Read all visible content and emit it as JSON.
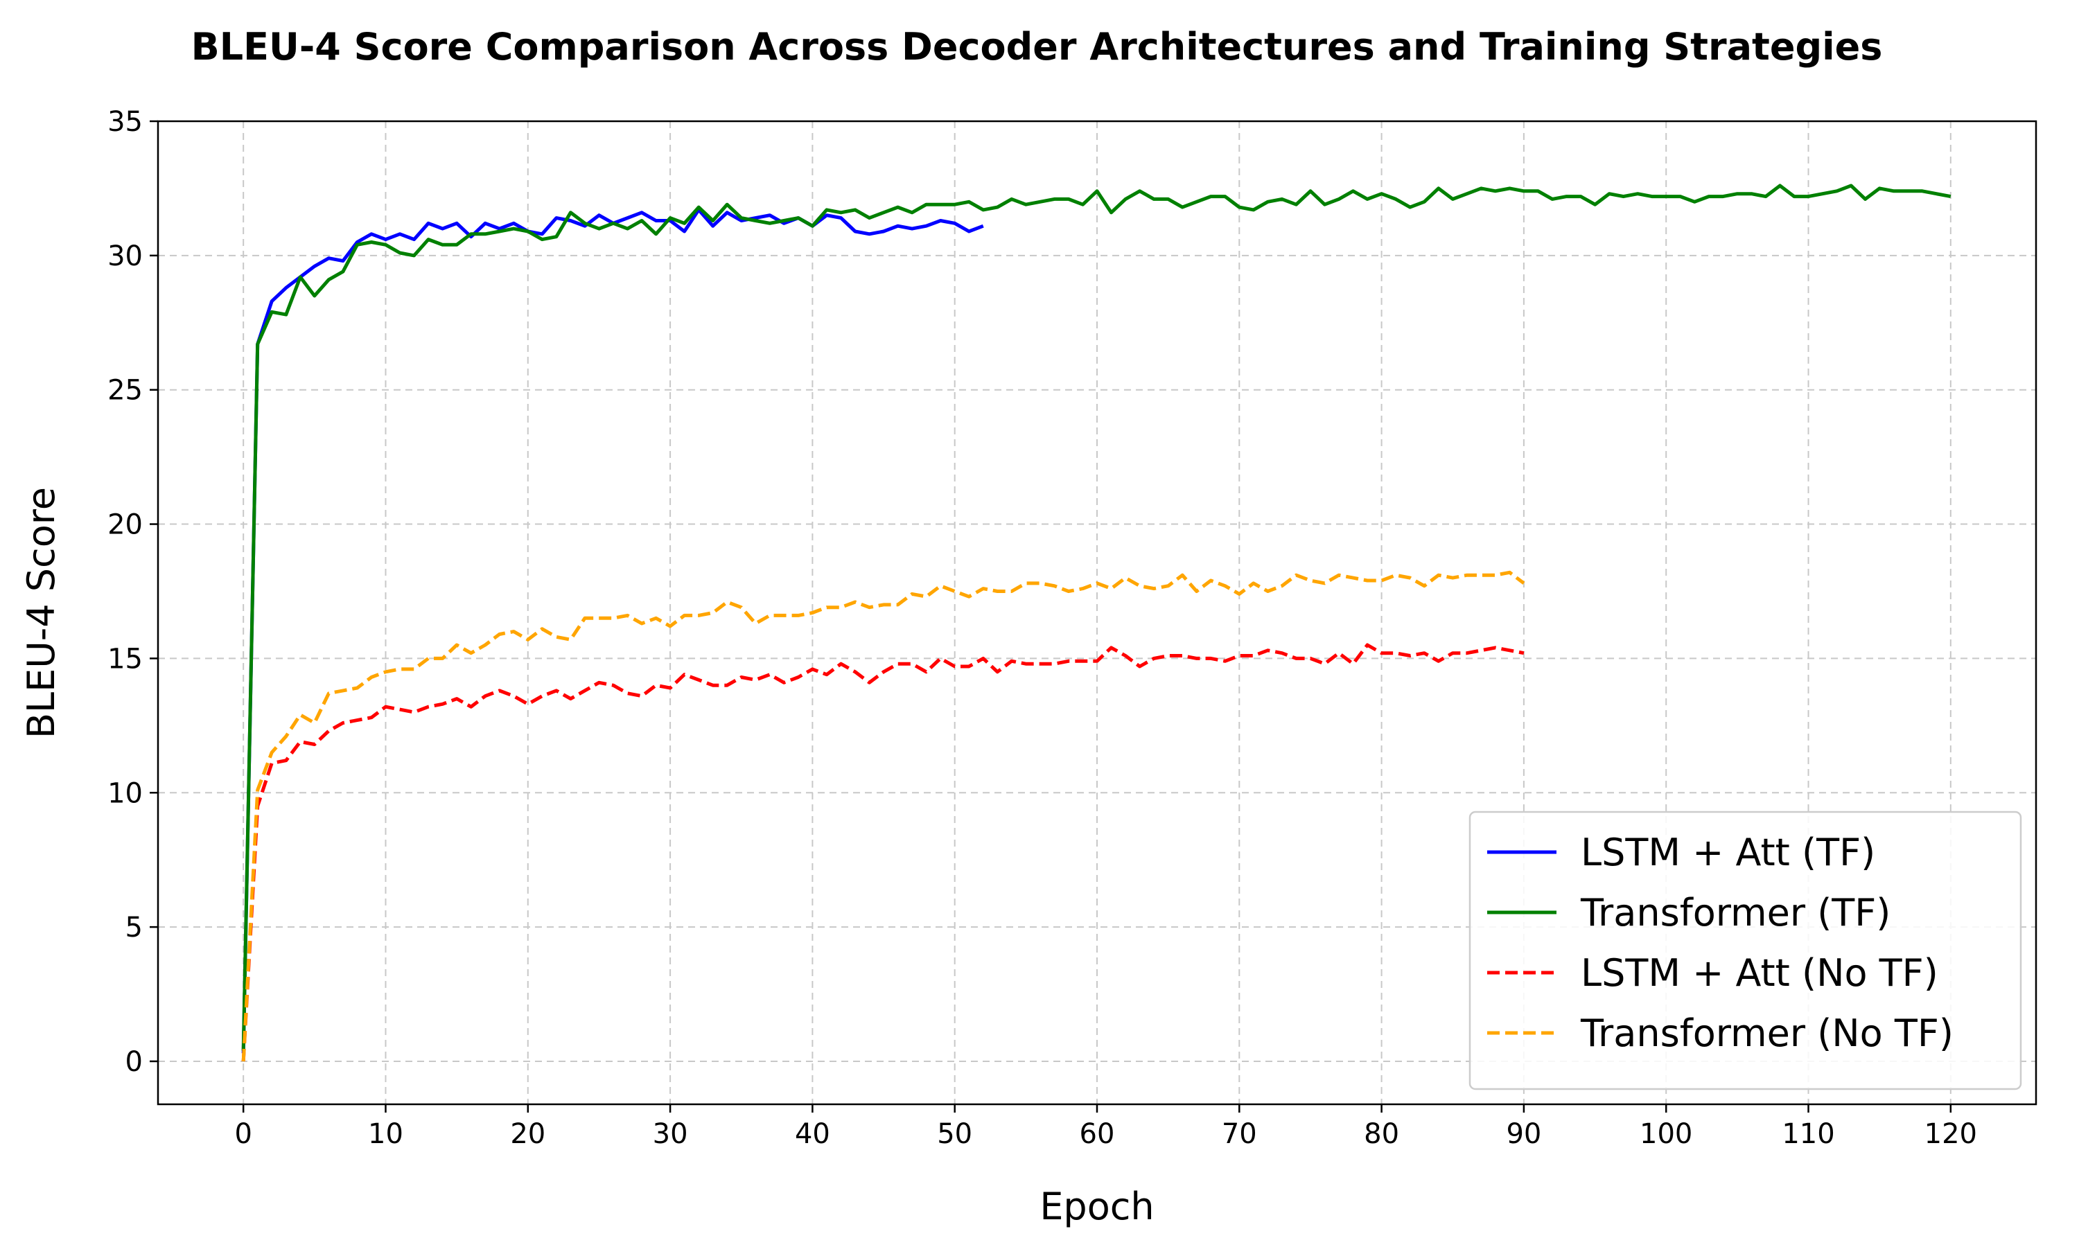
{
  "chart_data": {
    "type": "line",
    "title": "BLEU-4 Score Comparison Across Decoder Architectures and Training Strategies",
    "xlabel": "Epoch",
    "ylabel": "BLEU-4 Score",
    "xlim": [
      -6,
      126
    ],
    "ylim": [
      -1.6,
      35
    ],
    "xticks": [
      0,
      10,
      20,
      30,
      40,
      50,
      60,
      70,
      80,
      90,
      100,
      110,
      120
    ],
    "yticks": [
      0,
      5,
      10,
      15,
      20,
      25,
      30,
      35
    ],
    "grid": true,
    "legend_position": "bottom-right",
    "series": [
      {
        "name": "LSTM + Att (TF)",
        "color": "#0000ff",
        "style": "solid",
        "x": [
          0,
          1,
          2,
          3,
          4,
          5,
          6,
          7,
          8,
          9,
          10,
          11,
          12,
          13,
          14,
          15,
          16,
          17,
          18,
          19,
          20,
          21,
          22,
          23,
          24,
          25,
          26,
          27,
          28,
          29,
          30,
          31,
          32,
          33,
          34,
          35,
          36,
          37,
          38,
          39,
          40,
          41,
          42,
          43,
          44,
          45,
          46,
          47,
          48,
          49,
          50,
          51,
          52
        ],
        "values": [
          0.3,
          26.7,
          28.3,
          28.8,
          29.2,
          29.6,
          29.9,
          29.8,
          30.5,
          30.8,
          30.6,
          30.8,
          30.6,
          31.2,
          31.0,
          31.2,
          30.7,
          31.2,
          31.0,
          31.2,
          30.9,
          30.8,
          31.4,
          31.3,
          31.1,
          31.5,
          31.2,
          31.4,
          31.6,
          31.3,
          31.3,
          30.9,
          31.7,
          31.1,
          31.6,
          31.3,
          31.4,
          31.5,
          31.2,
          31.4,
          31.1,
          31.5,
          31.4,
          30.9,
          30.8,
          30.9,
          31.1,
          31.0,
          31.1,
          31.3,
          31.2,
          30.9,
          31.1
        ]
      },
      {
        "name": "Transformer (TF)",
        "color": "#008000",
        "style": "solid",
        "x": [
          0,
          1,
          2,
          3,
          4,
          5,
          6,
          7,
          8,
          9,
          10,
          11,
          12,
          13,
          14,
          15,
          16,
          17,
          18,
          19,
          20,
          21,
          22,
          23,
          24,
          25,
          26,
          27,
          28,
          29,
          30,
          31,
          32,
          33,
          34,
          35,
          36,
          37,
          38,
          39,
          40,
          41,
          42,
          43,
          44,
          45,
          46,
          47,
          48,
          49,
          50,
          51,
          52,
          53,
          54,
          55,
          56,
          57,
          58,
          59,
          60,
          61,
          62,
          63,
          64,
          65,
          66,
          67,
          68,
          69,
          70,
          71,
          72,
          73,
          74,
          75,
          76,
          77,
          78,
          79,
          80,
          81,
          82,
          83,
          84,
          85,
          86,
          87,
          88,
          89,
          90,
          91,
          92,
          93,
          94,
          95,
          96,
          97,
          98,
          99,
          100,
          101,
          102,
          103,
          104,
          105,
          106,
          107,
          108,
          109,
          110,
          111,
          112,
          113,
          114,
          115,
          116,
          117,
          118,
          119,
          120
        ],
        "values": [
          0.4,
          26.7,
          27.9,
          27.8,
          29.2,
          28.5,
          29.1,
          29.4,
          30.4,
          30.5,
          30.4,
          30.1,
          30.0,
          30.6,
          30.4,
          30.4,
          30.8,
          30.8,
          30.9,
          31.0,
          30.9,
          30.6,
          30.7,
          31.6,
          31.2,
          31.0,
          31.2,
          31.0,
          31.3,
          30.8,
          31.4,
          31.2,
          31.8,
          31.3,
          31.9,
          31.4,
          31.3,
          31.2,
          31.3,
          31.4,
          31.1,
          31.7,
          31.6,
          31.7,
          31.4,
          31.6,
          31.8,
          31.6,
          31.9,
          31.9,
          31.9,
          32.0,
          31.7,
          31.8,
          32.1,
          31.9,
          32.0,
          32.1,
          32.1,
          31.9,
          32.4,
          31.6,
          32.1,
          32.4,
          32.1,
          32.1,
          31.8,
          32.0,
          32.2,
          32.2,
          31.8,
          31.7,
          32.0,
          32.1,
          31.9,
          32.4,
          31.9,
          32.1,
          32.4,
          32.1,
          32.3,
          32.1,
          31.8,
          32.0,
          32.5,
          32.1,
          32.3,
          32.5,
          32.4,
          32.5,
          32.4,
          32.4,
          32.1,
          32.2,
          32.2,
          31.9,
          32.3,
          32.2,
          32.3,
          32.2,
          32.2,
          32.2,
          32.0,
          32.2,
          32.2,
          32.3,
          32.3,
          32.2,
          32.6,
          32.2,
          32.2,
          32.3,
          32.4,
          32.6,
          32.1,
          32.5,
          32.4,
          32.4,
          32.4,
          32.3,
          32.2
        ]
      },
      {
        "name": "LSTM + Att (No TF)",
        "color": "#ff0000",
        "style": "dashed",
        "x": [
          0,
          1,
          2,
          3,
          4,
          5,
          6,
          7,
          8,
          9,
          10,
          11,
          12,
          13,
          14,
          15,
          16,
          17,
          18,
          19,
          20,
          21,
          22,
          23,
          24,
          25,
          26,
          27,
          28,
          29,
          30,
          31,
          32,
          33,
          34,
          35,
          36,
          37,
          38,
          39,
          40,
          41,
          42,
          43,
          44,
          45,
          46,
          47,
          48,
          49,
          50,
          51,
          52,
          53,
          54,
          55,
          56,
          57,
          58,
          59,
          60,
          61,
          62,
          63,
          64,
          65,
          66,
          67,
          68,
          69,
          70,
          71,
          72,
          73,
          74,
          75,
          76,
          77,
          78,
          79,
          80,
          81,
          82,
          83,
          84,
          85,
          86,
          87,
          88,
          89,
          90
        ],
        "values": [
          0.0,
          9.5,
          11.1,
          11.2,
          11.9,
          11.8,
          12.3,
          12.6,
          12.7,
          12.8,
          13.2,
          13.1,
          13.0,
          13.2,
          13.3,
          13.5,
          13.2,
          13.6,
          13.8,
          13.6,
          13.3,
          13.6,
          13.8,
          13.5,
          13.8,
          14.1,
          14.0,
          13.7,
          13.6,
          14.0,
          13.9,
          14.4,
          14.2,
          14.0,
          14.0,
          14.3,
          14.2,
          14.4,
          14.1,
          14.3,
          14.6,
          14.4,
          14.8,
          14.5,
          14.1,
          14.5,
          14.8,
          14.8,
          14.5,
          15.0,
          14.7,
          14.7,
          15.0,
          14.5,
          14.9,
          14.8,
          14.8,
          14.8,
          14.9,
          14.9,
          14.9,
          15.4,
          15.1,
          14.7,
          15.0,
          15.1,
          15.1,
          15.0,
          15.0,
          14.9,
          15.1,
          15.1,
          15.3,
          15.2,
          15.0,
          15.0,
          14.8,
          15.2,
          14.8,
          15.5,
          15.2,
          15.2,
          15.1,
          15.2,
          14.9,
          15.2,
          15.2,
          15.3,
          15.4,
          15.3,
          15.2
        ]
      },
      {
        "name": "Transformer (No TF)",
        "color": "#ffa500",
        "style": "dashed",
        "x": [
          0,
          1,
          2,
          3,
          4,
          5,
          6,
          7,
          8,
          9,
          10,
          11,
          12,
          13,
          14,
          15,
          16,
          17,
          18,
          19,
          20,
          21,
          22,
          23,
          24,
          25,
          26,
          27,
          28,
          29,
          30,
          31,
          32,
          33,
          34,
          35,
          36,
          37,
          38,
          39,
          40,
          41,
          42,
          43,
          44,
          45,
          46,
          47,
          48,
          49,
          50,
          51,
          52,
          53,
          54,
          55,
          56,
          57,
          58,
          59,
          60,
          61,
          62,
          63,
          64,
          65,
          66,
          67,
          68,
          69,
          70,
          71,
          72,
          73,
          74,
          75,
          76,
          77,
          78,
          79,
          80,
          81,
          82,
          83,
          84,
          85,
          86,
          87,
          88,
          89,
          90
        ],
        "values": [
          0.0,
          10.1,
          11.5,
          12.1,
          12.9,
          12.6,
          13.7,
          13.8,
          13.9,
          14.3,
          14.5,
          14.6,
          14.6,
          15.0,
          15.0,
          15.5,
          15.2,
          15.5,
          15.9,
          16.0,
          15.7,
          16.1,
          15.8,
          15.7,
          16.5,
          16.5,
          16.5,
          16.6,
          16.3,
          16.5,
          16.2,
          16.6,
          16.6,
          16.7,
          17.1,
          16.9,
          16.3,
          16.6,
          16.6,
          16.6,
          16.7,
          16.9,
          16.9,
          17.1,
          16.9,
          17.0,
          17.0,
          17.4,
          17.3,
          17.7,
          17.5,
          17.3,
          17.6,
          17.5,
          17.5,
          17.8,
          17.8,
          17.7,
          17.5,
          17.6,
          17.8,
          17.6,
          18.0,
          17.7,
          17.6,
          17.7,
          18.1,
          17.5,
          17.9,
          17.7,
          17.4,
          17.8,
          17.5,
          17.7,
          18.1,
          17.9,
          17.8,
          18.1,
          18.0,
          17.9,
          17.9,
          18.1,
          18.0,
          17.7,
          18.1,
          18.0,
          18.1,
          18.1,
          18.1,
          18.2,
          17.8
        ]
      }
    ]
  }
}
